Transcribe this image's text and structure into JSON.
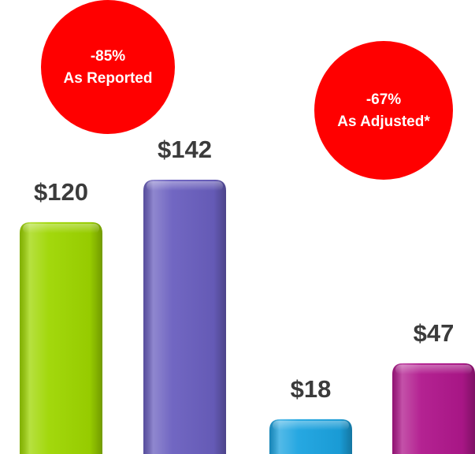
{
  "chart_data": {
    "type": "bar",
    "categories": [
      null,
      null,
      null,
      null
    ],
    "values": [
      120,
      142,
      18,
      47
    ],
    "value_labels": [
      "$120",
      "$142",
      "$18",
      "$47"
    ],
    "colors": [
      "#9ed600",
      "#6a5fbf",
      "#1ba3e0",
      "#b0178c"
    ],
    "annotations": [
      {
        "text": "-85%",
        "subtext": "As Reported",
        "color": "#ff0000"
      },
      {
        "text": "-67%",
        "subtext": "As Adjusted*",
        "color": "#ff0000"
      }
    ]
  }
}
